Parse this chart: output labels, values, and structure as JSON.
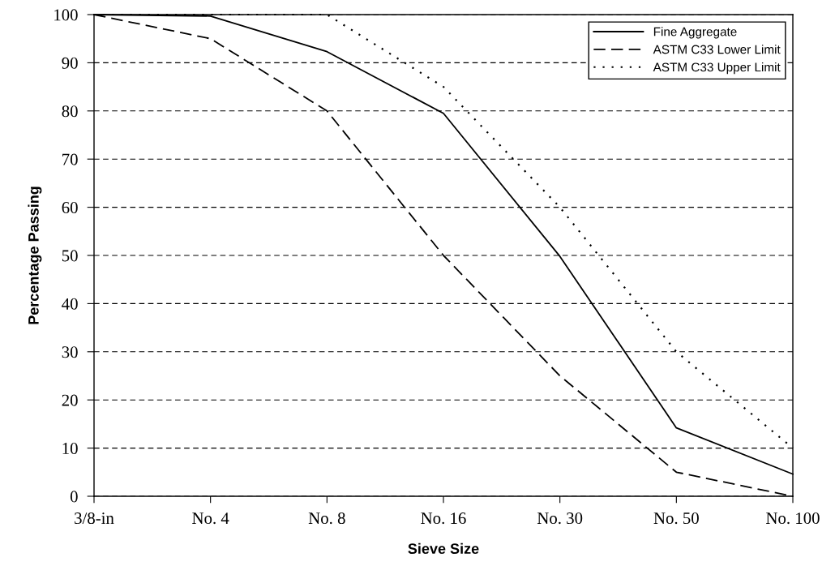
{
  "chart_data": {
    "type": "line",
    "xlabel": "Sieve Size",
    "ylabel": "Percentage Passing",
    "categories": [
      "3/8-in",
      "No. 4",
      "No. 8",
      "No. 16",
      "No. 30",
      "No. 50",
      "No. 100"
    ],
    "series": [
      {
        "name": "Fine Aggregate",
        "color": "#000000",
        "line_style": "solid",
        "values": [
          100,
          99.7,
          92.3,
          79.5,
          49.8,
          14.2,
          4.6
        ]
      },
      {
        "name": "ASTM C33 Lower Limit",
        "color": "#000000",
        "line_style": "dashed",
        "values": [
          100,
          95,
          80,
          50,
          25,
          5,
          0
        ]
      },
      {
        "name": "ASTM C33 Upper Limit",
        "color": "#000000",
        "line_style": "dotted",
        "values": [
          100,
          100,
          100,
          85,
          60,
          30,
          10
        ]
      }
    ],
    "ylim": [
      0,
      100
    ],
    "yticks": [
      0,
      10,
      20,
      30,
      40,
      50,
      60,
      70,
      80,
      90,
      100
    ],
    "grid": "y",
    "legend": "top right",
    "marker": "none"
  }
}
